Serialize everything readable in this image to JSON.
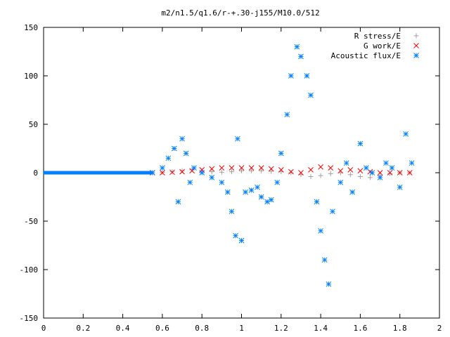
{
  "chart_data": {
    "type": "scatter",
    "title": "m2/n1.5/q1.6/r-+.30-j155/M10.0/512",
    "xlabel": "",
    "ylabel": "",
    "xlim": [
      0,
      2
    ],
    "ylim": [
      -150,
      150
    ],
    "x_ticks": [
      "0",
      "0.2",
      "0.4",
      "0.6",
      "0.8",
      "1",
      "1.2",
      "1.4",
      "1.6",
      "1.8",
      "2"
    ],
    "y_ticks": [
      "150",
      "100",
      "50",
      "0",
      "-50",
      "-100",
      "-150"
    ],
    "x_tick_values": [
      0,
      0.2,
      0.4,
      0.6,
      0.8,
      1.0,
      1.2,
      1.4,
      1.6,
      1.8,
      2.0
    ],
    "y_tick_values": [
      150,
      100,
      50,
      0,
      -50,
      -100,
      -150
    ],
    "grid": false,
    "legend_position": "top-right",
    "series": [
      {
        "name": "R stress/E",
        "color": "#a0a0a0",
        "marker": "plus",
        "x": [
          0.55,
          0.6,
          0.65,
          0.7,
          0.75,
          0.8,
          0.85,
          0.9,
          0.95,
          1.0,
          1.05,
          1.1,
          1.15,
          1.2,
          1.25,
          1.3,
          1.35,
          1.4,
          1.45,
          1.5,
          1.55,
          1.6,
          1.65,
          1.7,
          1.75,
          1.8,
          1.85
        ],
        "y": [
          0,
          0.5,
          1,
          2,
          3,
          2,
          1,
          0.5,
          1,
          2,
          2,
          2,
          1.5,
          1,
          0,
          -2,
          -4,
          -3,
          -1,
          0,
          -2,
          -4,
          -5,
          -3,
          -1,
          0,
          0
        ]
      },
      {
        "name": "G work/E",
        "color": "#ff0000",
        "marker": "cross",
        "x": [
          0.55,
          0.6,
          0.65,
          0.7,
          0.75,
          0.8,
          0.85,
          0.9,
          0.95,
          1.0,
          1.05,
          1.1,
          1.15,
          1.2,
          1.25,
          1.3,
          1.35,
          1.4,
          1.45,
          1.5,
          1.55,
          1.6,
          1.65,
          1.7,
          1.75,
          1.8,
          1.85
        ],
        "y": [
          0,
          0,
          0.5,
          1,
          2,
          3,
          4,
          5,
          5,
          5,
          5,
          5,
          4,
          3,
          1,
          0,
          3,
          6,
          5,
          2,
          3,
          2,
          1,
          0,
          0,
          0,
          0
        ]
      },
      {
        "name": "Acoustic flux/E",
        "color": "#0080ff",
        "marker": "star",
        "x": [
          0.55,
          0.6,
          0.63,
          0.66,
          0.68,
          0.7,
          0.72,
          0.74,
          0.76,
          0.8,
          0.85,
          0.9,
          0.93,
          0.95,
          0.97,
          0.98,
          1.0,
          1.02,
          1.05,
          1.08,
          1.1,
          1.13,
          1.15,
          1.18,
          1.2,
          1.23,
          1.25,
          1.28,
          1.3,
          1.33,
          1.35,
          1.38,
          1.4,
          1.42,
          1.44,
          1.46,
          1.5,
          1.53,
          1.56,
          1.6,
          1.63,
          1.66,
          1.7,
          1.73,
          1.76,
          1.8,
          1.83,
          1.86
        ],
        "y": [
          0,
          5,
          15,
          25,
          -30,
          35,
          20,
          -10,
          5,
          0,
          -5,
          -10,
          -20,
          -40,
          -65,
          35,
          -70,
          -20,
          -18,
          -15,
          -25,
          -30,
          -28,
          -10,
          20,
          60,
          100,
          130,
          120,
          100,
          80,
          -30,
          -60,
          -90,
          -115,
          -40,
          -10,
          10,
          -20,
          30,
          5,
          0,
          -5,
          10,
          5,
          -15,
          40,
          10
        ]
      }
    ]
  }
}
